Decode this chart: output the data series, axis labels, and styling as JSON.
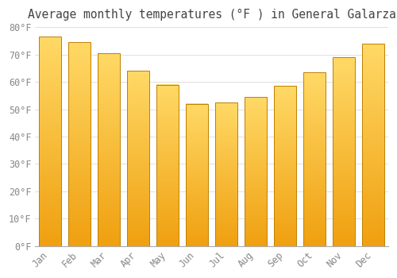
{
  "title": "Average monthly temperatures (°F ) in General Galarza",
  "months": [
    "Jan",
    "Feb",
    "Mar",
    "Apr",
    "May",
    "Jun",
    "Jul",
    "Aug",
    "Sep",
    "Oct",
    "Nov",
    "Dec"
  ],
  "values": [
    76.5,
    74.5,
    70.5,
    64.0,
    59.0,
    52.0,
    52.5,
    54.5,
    58.5,
    63.5,
    69.0,
    74.0
  ],
  "bar_color_top": "#FFD966",
  "bar_color_bottom": "#F0A010",
  "bar_edge_color": "#C08000",
  "background_color": "#FFFFFF",
  "grid_color": "#E0E0E0",
  "text_color": "#888888",
  "ylim": [
    0,
    80
  ],
  "yticks": [
    0,
    10,
    20,
    30,
    40,
    50,
    60,
    70,
    80
  ],
  "title_fontsize": 10.5,
  "tick_fontsize": 8.5,
  "bar_width": 0.75
}
